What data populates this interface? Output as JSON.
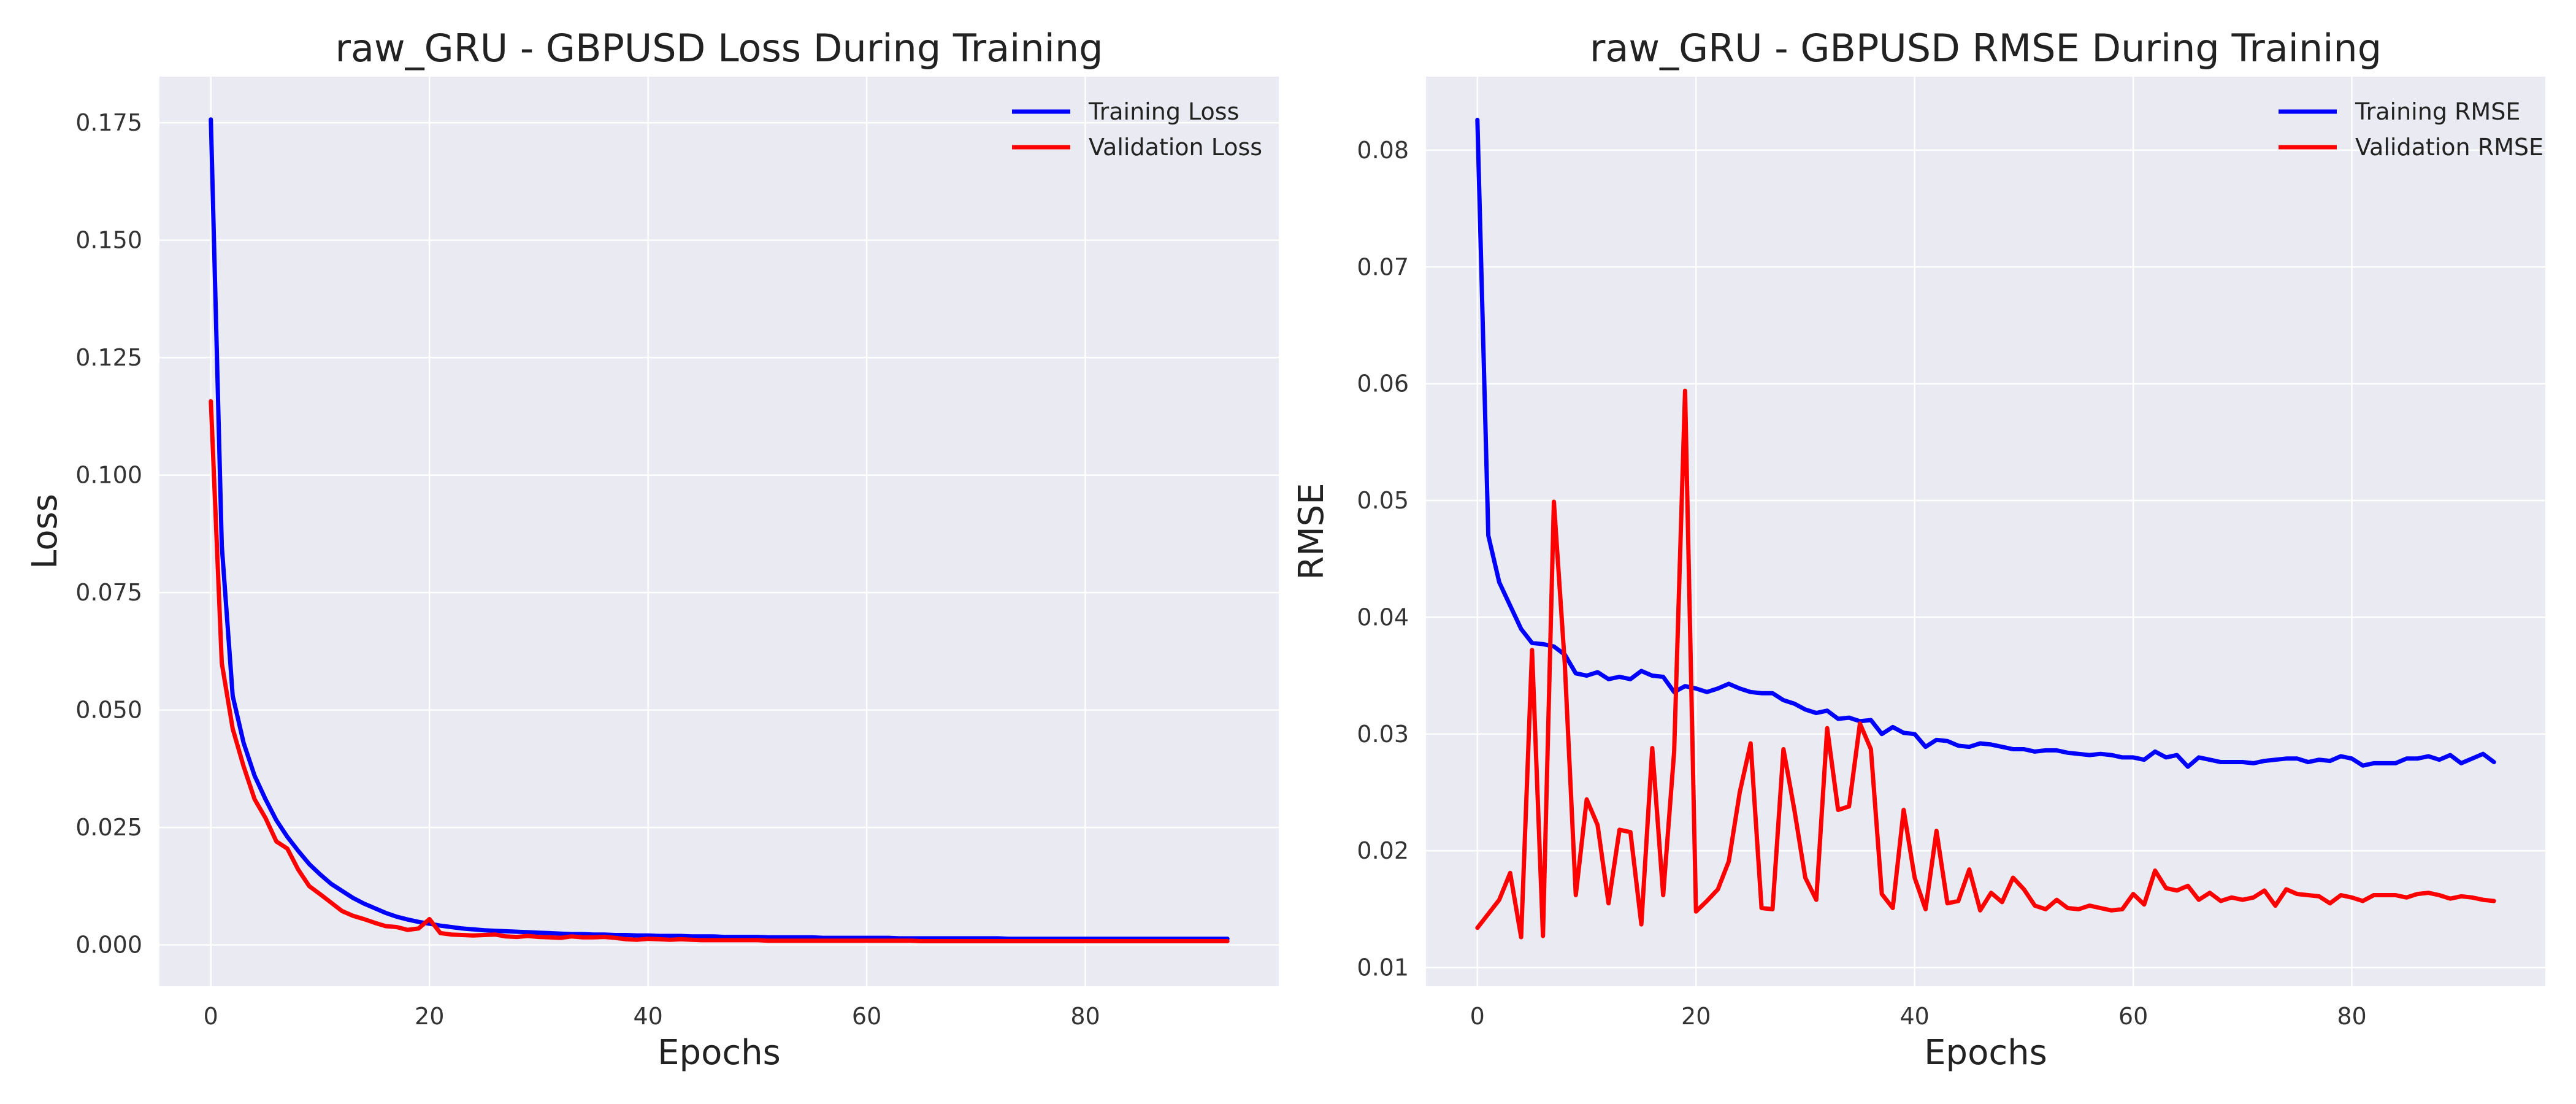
{
  "chart_data": [
    {
      "type": "line",
      "title": "raw_GRU - GBPUSD Loss During Training",
      "xlabel": "Epochs",
      "ylabel": "Loss",
      "xlim": [
        -4.7,
        97.7
      ],
      "ylim": [
        -0.0088,
        0.1848
      ],
      "xticks": [
        0,
        20,
        40,
        60,
        80
      ],
      "yticks": [
        0.0,
        0.025,
        0.05,
        0.075,
        0.1,
        0.125,
        0.15,
        0.175
      ],
      "ytick_labels": [
        "0.000",
        "0.025",
        "0.050",
        "0.075",
        "0.100",
        "0.125",
        "0.150",
        "0.175"
      ],
      "grid": true,
      "legend": "top-right",
      "series": [
        {
          "name": "Training Loss",
          "color": "#0000ff",
          "values": [
            0.1757,
            0.085,
            0.053,
            0.043,
            0.036,
            0.031,
            0.0265,
            0.023,
            0.02,
            0.0172,
            0.015,
            0.013,
            0.0115,
            0.01,
            0.0088,
            0.0078,
            0.0068,
            0.006,
            0.0054,
            0.0049,
            0.0045,
            0.0041,
            0.0038,
            0.0035,
            0.0033,
            0.0031,
            0.003,
            0.0029,
            0.0028,
            0.0027,
            0.0026,
            0.0025,
            0.0024,
            0.0023,
            0.0023,
            0.0022,
            0.0022,
            0.0021,
            0.0021,
            0.002,
            0.002,
            0.0019,
            0.0019,
            0.0019,
            0.0018,
            0.0018,
            0.0018,
            0.0017,
            0.0017,
            0.0017,
            0.0017,
            0.0016,
            0.0016,
            0.0016,
            0.0016,
            0.0016,
            0.0015,
            0.0015,
            0.0015,
            0.0015,
            0.0015,
            0.0015,
            0.0015,
            0.0014,
            0.0014,
            0.0014,
            0.0014,
            0.0014,
            0.0014,
            0.0014,
            0.0014,
            0.0014,
            0.0014,
            0.0013,
            0.0013,
            0.0013,
            0.0013,
            0.0013,
            0.0013,
            0.0013,
            0.0013,
            0.0013,
            0.0013,
            0.0013,
            0.0013,
            0.0013,
            0.0013,
            0.0013,
            0.0013,
            0.0013,
            0.0013,
            0.0013,
            0.0013,
            0.0013
          ]
        },
        {
          "name": "Validation Loss",
          "color": "#ff0000",
          "values": [
            0.1157,
            0.06,
            0.046,
            0.038,
            0.031,
            0.027,
            0.022,
            0.0205,
            0.016,
            0.0125,
            0.0108,
            0.009,
            0.0072,
            0.0062,
            0.0055,
            0.0047,
            0.004,
            0.0038,
            0.0032,
            0.0035,
            0.0055,
            0.0025,
            0.0022,
            0.0021,
            0.002,
            0.0021,
            0.0022,
            0.0018,
            0.0017,
            0.0019,
            0.0017,
            0.0016,
            0.0015,
            0.0018,
            0.0016,
            0.0016,
            0.0017,
            0.0015,
            0.0012,
            0.0011,
            0.0013,
            0.0012,
            0.0011,
            0.0012,
            0.0011,
            0.001,
            0.001,
            0.001,
            0.001,
            0.001,
            0.001,
            0.0009,
            0.0009,
            0.0009,
            0.0009,
            0.0009,
            0.0009,
            0.0009,
            0.0009,
            0.0009,
            0.0009,
            0.0009,
            0.0009,
            0.0009,
            0.0009,
            0.0008,
            0.0008,
            0.0008,
            0.0008,
            0.0008,
            0.0008,
            0.0008,
            0.0008,
            0.0008,
            0.0008,
            0.0008,
            0.0008,
            0.0008,
            0.0008,
            0.0008,
            0.0008,
            0.0008,
            0.0008,
            0.0008,
            0.0008,
            0.0008,
            0.0008,
            0.0008,
            0.0008,
            0.0008,
            0.0008,
            0.0008,
            0.0008,
            0.0008
          ]
        }
      ]
    },
    {
      "type": "line",
      "title": "raw_GRU - GBPUSD RMSE During Training",
      "xlabel": "Epochs",
      "ylabel": "RMSE",
      "xlim": [
        -4.7,
        97.7
      ],
      "ylim": [
        0.0084,
        0.0863
      ],
      "xticks": [
        0,
        20,
        40,
        60,
        80
      ],
      "yticks": [
        0.01,
        0.02,
        0.03,
        0.04,
        0.05,
        0.06,
        0.07,
        0.08
      ],
      "ytick_labels": [
        "0.01",
        "0.02",
        "0.03",
        "0.04",
        "0.05",
        "0.06",
        "0.07",
        "0.08"
      ],
      "grid": true,
      "legend": "top-right",
      "series": [
        {
          "name": "Training RMSE",
          "color": "#0000ff",
          "values": [
            0.0826,
            0.047,
            0.043,
            0.041,
            0.039,
            0.0378,
            0.0377,
            0.0375,
            0.0368,
            0.0352,
            0.035,
            0.0353,
            0.0347,
            0.0349,
            0.0347,
            0.0354,
            0.035,
            0.0349,
            0.0336,
            0.0341,
            0.0339,
            0.0336,
            0.0339,
            0.0343,
            0.0339,
            0.0336,
            0.0335,
            0.0335,
            0.0329,
            0.0326,
            0.0321,
            0.0318,
            0.032,
            0.0313,
            0.0314,
            0.0311,
            0.0312,
            0.03,
            0.0306,
            0.0301,
            0.03,
            0.0289,
            0.0295,
            0.0294,
            0.029,
            0.0289,
            0.0292,
            0.0291,
            0.0289,
            0.0287,
            0.0287,
            0.0285,
            0.0286,
            0.0286,
            0.0284,
            0.0283,
            0.0282,
            0.0283,
            0.0282,
            0.028,
            0.028,
            0.0278,
            0.0285,
            0.028,
            0.0282,
            0.0272,
            0.028,
            0.0278,
            0.0276,
            0.0276,
            0.0276,
            0.0275,
            0.0277,
            0.0278,
            0.0279,
            0.0279,
            0.0276,
            0.0278,
            0.0277,
            0.0281,
            0.0279,
            0.0273,
            0.0275,
            0.0275,
            0.0275,
            0.0279,
            0.0279,
            0.0281,
            0.0278,
            0.0282,
            0.0275,
            0.0279,
            0.0283,
            0.0276
          ]
        },
        {
          "name": "Validation RMSE",
          "color": "#ff0000",
          "values": [
            0.0134,
            0.0146,
            0.0158,
            0.0181,
            0.0126,
            0.0372,
            0.0127,
            0.0499,
            0.036,
            0.0162,
            0.0244,
            0.0222,
            0.0155,
            0.0218,
            0.0216,
            0.0137,
            0.0288,
            0.0162,
            0.0285,
            0.0594,
            0.0148,
            0.0157,
            0.0167,
            0.0191,
            0.025,
            0.0292,
            0.0151,
            0.015,
            0.0287,
            0.0235,
            0.0177,
            0.0158,
            0.0305,
            0.0235,
            0.0238,
            0.0309,
            0.0287,
            0.0163,
            0.0151,
            0.0235,
            0.0177,
            0.015,
            0.0217,
            0.0155,
            0.0157,
            0.0184,
            0.0149,
            0.0164,
            0.0156,
            0.0177,
            0.0167,
            0.0153,
            0.015,
            0.0158,
            0.0151,
            0.015,
            0.0153,
            0.0151,
            0.0149,
            0.015,
            0.0163,
            0.0154,
            0.0183,
            0.0168,
            0.0166,
            0.017,
            0.0158,
            0.0164,
            0.0157,
            0.016,
            0.0158,
            0.016,
            0.0166,
            0.0153,
            0.0167,
            0.0163,
            0.0162,
            0.0161,
            0.0155,
            0.0162,
            0.016,
            0.0157,
            0.0162,
            0.0162,
            0.0162,
            0.016,
            0.0163,
            0.0164,
            0.0162,
            0.0159,
            0.0161,
            0.016,
            0.0158,
            0.0157
          ]
        }
      ]
    }
  ]
}
